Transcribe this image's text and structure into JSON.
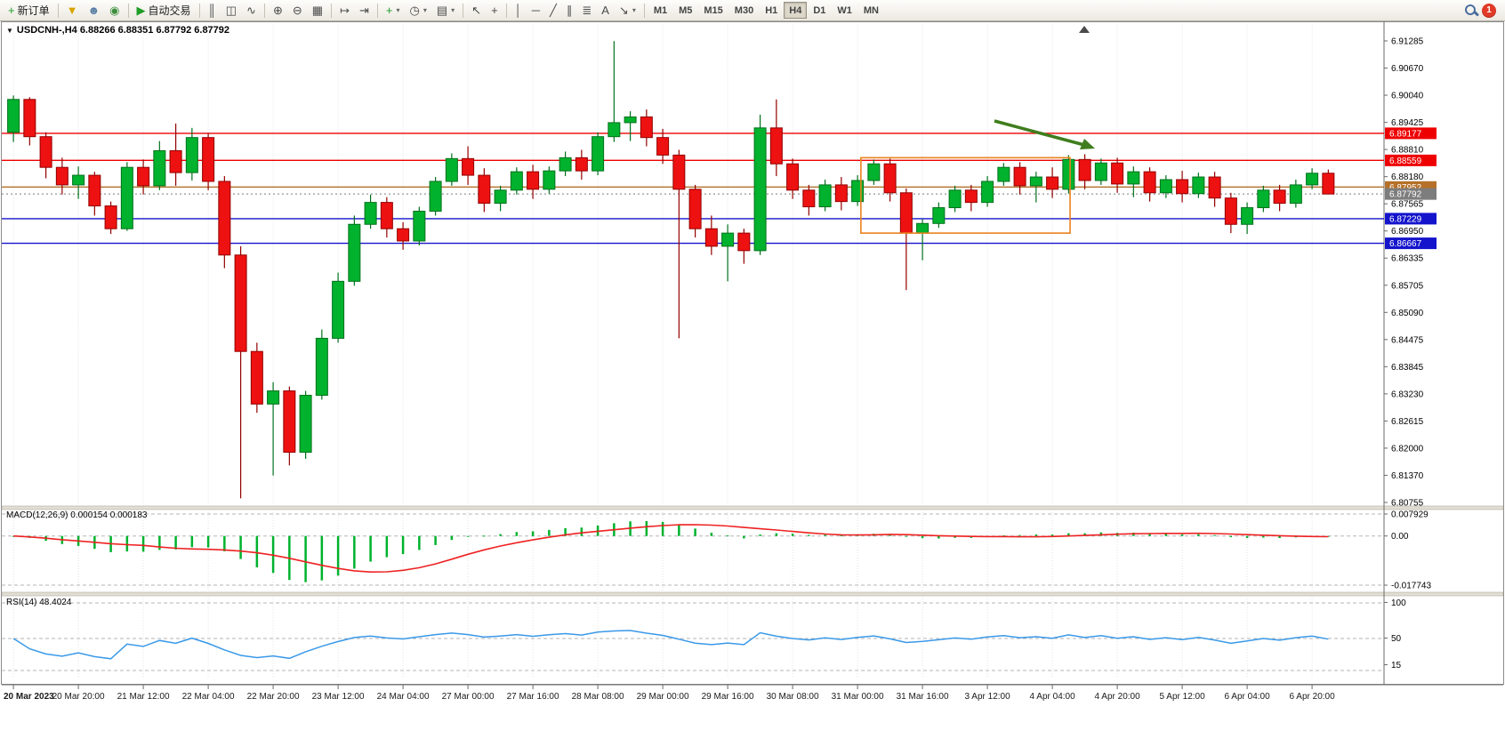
{
  "chart_header": {
    "symbol_ohlc": "USDCNH-,H4 6.88266 6.88351 6.87792 6.87792"
  },
  "indicators": {
    "macd_label": "MACD(12,26,9) 0.000154 0.000183",
    "rsi_label": "RSI(14) 48.4024"
  },
  "toolbar": {
    "groups": [
      {
        "items": [
          {
            "name": "new-order-button",
            "glyph": "+",
            "color": "#1f9d27",
            "label": "新订单"
          }
        ]
      },
      {
        "items": [
          {
            "name": "funnel-button",
            "glyph": "▼",
            "color": "#d9a400"
          },
          {
            "name": "community-profile-button",
            "glyph": "☻",
            "color": "#5b7fa6"
          },
          {
            "name": "broadcast-button",
            "glyph": "◉",
            "color": "#3e8e3e"
          }
        ]
      },
      {
        "items": [
          {
            "name": "autotrading-button",
            "glyph": "▶",
            "color": "#1f9d27",
            "label": "自动交易"
          }
        ]
      },
      {
        "items": [
          {
            "name": "bar-chart-type-button",
            "glyph": "║"
          },
          {
            "name": "candlestick-type-button",
            "glyph": "◫"
          },
          {
            "name": "line-chart-type-button",
            "glyph": "∿"
          }
        ]
      },
      {
        "items": [
          {
            "name": "zoom-in-button",
            "glyph": "⊕"
          },
          {
            "name": "zoom-out-button",
            "glyph": "⊖"
          },
          {
            "name": "tile-windows-button",
            "glyph": "▦"
          }
        ]
      },
      {
        "items": [
          {
            "name": "auto-scroll-button",
            "glyph": "↦"
          },
          {
            "name": "chart-shift-button",
            "glyph": "⇥"
          }
        ]
      },
      {
        "items": [
          {
            "name": "indicators-button",
            "glyph": "+",
            "color": "#1f9d27",
            "dropdown": true
          },
          {
            "name": "periods-button",
            "glyph": "◷",
            "dropdown": true
          },
          {
            "name": "templates-button",
            "glyph": "▤",
            "dropdown": true
          }
        ]
      },
      {
        "items": [
          {
            "name": "cursor-button",
            "glyph": "↖"
          },
          {
            "name": "crosshair-button",
            "glyph": "+"
          }
        ]
      },
      {
        "items": [
          {
            "name": "vertical-line-button",
            "glyph": "│"
          },
          {
            "name": "horizontal-line-button",
            "glyph": "─"
          },
          {
            "name": "trendline-button",
            "glyph": "╱"
          },
          {
            "name": "equidistant-channel-button",
            "glyph": "∥"
          },
          {
            "name": "fibonacci-button",
            "glyph": "≣"
          },
          {
            "name": "text-button",
            "glyph": "A"
          },
          {
            "name": "arrows-button",
            "glyph": "↘",
            "dropdown": true
          }
        ]
      }
    ],
    "timeframes": [
      "M1",
      "M5",
      "M15",
      "M30",
      "H1",
      "H4",
      "D1",
      "W1",
      "MN"
    ],
    "active_timeframe": "H4",
    "notification_count": "1"
  },
  "chart_data": {
    "type": "candlestick",
    "symbol": "USDCNH-",
    "timeframe": "H4",
    "current_ohlc": {
      "open": "6.88266",
      "high": "6.88351",
      "low": "6.87792",
      "close": "6.87792"
    },
    "up_color": "#00b22d",
    "down_color": "#ee1111",
    "up_border": "#00711c",
    "down_border": "#930000",
    "price_axis_labels": [
      "6.91285",
      "6.90670",
      "6.90040",
      "6.89425",
      "6.88810",
      "6.88180",
      "6.87565",
      "6.86950",
      "6.86335",
      "6.85705",
      "6.85090",
      "6.84475",
      "6.83845",
      "6.83230",
      "6.82615",
      "6.82000",
      "6.81370",
      "6.80755"
    ],
    "price_axis_range": {
      "max": 6.91285,
      "min": 6.80755
    },
    "time_axis_labels": [
      "20 Mar 2023",
      "20 Mar 20:00",
      "21 Mar 12:00",
      "22 Mar 04:00",
      "22 Mar 20:00",
      "23 Mar 12:00",
      "24 Mar 04:00",
      "27 Mar 00:00",
      "27 Mar 16:00",
      "28 Mar 08:00",
      "29 Mar 00:00",
      "29 Mar 16:00",
      "30 Mar 08:00",
      "31 Mar 00:00",
      "31 Mar 16:00",
      "3 Apr 12:00",
      "4 Apr 04:00",
      "4 Apr 20:00",
      "5 Apr 12:00",
      "6 Apr 04:00",
      "6 Apr 20:00"
    ],
    "horizontal_lines": [
      {
        "name": "resistance-line-1",
        "price": 6.89177,
        "label": "6.89177",
        "color": "#ee0000",
        "style": "solid"
      },
      {
        "name": "resistance-line-2",
        "price": 6.88559,
        "label": "6.88559",
        "color": "#ee0000",
        "style": "solid"
      },
      {
        "name": "pivot-line",
        "price": 6.87952,
        "label": "6.87952",
        "color": "#b5712a",
        "style": "solid"
      },
      {
        "name": "bid-price-line",
        "price": 6.87792,
        "label": "6.87792",
        "color": "#7d7d7d",
        "style": "dotted"
      },
      {
        "name": "support-line-1",
        "price": 6.87229,
        "label": "6.87229",
        "color": "#1414cc",
        "style": "solid"
      },
      {
        "name": "support-line-2",
        "price": 6.86667,
        "label": "6.86667",
        "color": "#1414cc",
        "style": "solid"
      }
    ],
    "highlight_box": {
      "price_top": 6.8862,
      "price_bottom": 6.869,
      "bar_start": 52.7,
      "bar_end": 64.6,
      "color": "#e8821e"
    },
    "trend_arrow": {
      "direction": "down-right",
      "color": "#3f7d1e"
    },
    "candles_ohlc": [
      [
        6.892,
        6.9004,
        6.8898,
        6.8995
      ],
      [
        6.8995,
        6.9,
        6.889,
        6.891
      ],
      [
        6.891,
        6.892,
        6.8815,
        6.884
      ],
      [
        6.884,
        6.8862,
        6.8778,
        6.88
      ],
      [
        6.88,
        6.8842,
        6.8768,
        6.8822
      ],
      [
        6.8822,
        6.883,
        6.873,
        6.8752
      ],
      [
        6.8752,
        6.8762,
        6.8688,
        6.87
      ],
      [
        6.87,
        6.8852,
        6.8695,
        6.884
      ],
      [
        6.884,
        6.8858,
        6.8778,
        6.8798
      ],
      [
        6.8798,
        6.89,
        6.8788,
        6.8878
      ],
      [
        6.8878,
        6.894,
        6.8798,
        6.8828
      ],
      [
        6.8828,
        6.893,
        6.881,
        6.8908
      ],
      [
        6.8908,
        6.8918,
        6.8788,
        6.8808
      ],
      [
        6.8808,
        6.882,
        6.861,
        6.864
      ],
      [
        6.864,
        6.866,
        6.8085,
        6.842
      ],
      [
        6.842,
        6.844,
        6.828,
        6.83
      ],
      [
        6.83,
        6.835,
        6.8137,
        6.833
      ],
      [
        6.833,
        6.834,
        6.816,
        6.819
      ],
      [
        6.819,
        6.833,
        6.8175,
        6.832
      ],
      [
        6.832,
        6.847,
        6.831,
        6.845
      ],
      [
        6.845,
        6.86,
        6.844,
        6.858
      ],
      [
        6.858,
        6.873,
        6.857,
        6.871
      ],
      [
        6.871,
        6.8778,
        6.87,
        6.876
      ],
      [
        6.876,
        6.8772,
        6.868,
        6.87
      ],
      [
        6.87,
        6.8715,
        6.8652,
        6.8672
      ],
      [
        6.8672,
        6.875,
        6.8662,
        6.874
      ],
      [
        6.874,
        6.8818,
        6.873,
        6.8808
      ],
      [
        6.8808,
        6.8872,
        6.8798,
        6.886
      ],
      [
        6.886,
        6.8888,
        6.88,
        6.8822
      ],
      [
        6.8822,
        6.8838,
        6.8738,
        6.8758
      ],
      [
        6.8758,
        6.8798,
        6.874,
        6.8788
      ],
      [
        6.8788,
        6.884,
        6.8778,
        6.883
      ],
      [
        6.883,
        6.8846,
        6.8768,
        6.879
      ],
      [
        6.879,
        6.8842,
        6.878,
        6.8832
      ],
      [
        6.8832,
        6.8876,
        6.882,
        6.8862
      ],
      [
        6.8862,
        6.888,
        6.8812,
        6.8832
      ],
      [
        6.8832,
        6.892,
        6.8822,
        6.891
      ],
      [
        6.891,
        6.9128,
        6.8898,
        6.8942
      ],
      [
        6.8942,
        6.8968,
        6.89,
        6.8955
      ],
      [
        6.8955,
        6.8972,
        6.8888,
        6.8908
      ],
      [
        6.8908,
        6.8928,
        6.8848,
        6.8868
      ],
      [
        6.8868,
        6.888,
        6.845,
        6.879
      ],
      [
        6.879,
        6.88,
        6.868,
        6.87
      ],
      [
        6.87,
        6.873,
        6.864,
        6.866
      ],
      [
        6.866,
        6.871,
        6.858,
        6.869
      ],
      [
        6.869,
        6.87,
        6.862,
        6.865
      ],
      [
        6.865,
        6.896,
        6.864,
        6.893
      ],
      [
        6.893,
        6.8995,
        6.882,
        6.8848
      ],
      [
        6.8848,
        6.886,
        6.8768,
        6.8788
      ],
      [
        6.8788,
        6.88,
        6.873,
        6.875
      ],
      [
        6.875,
        6.8812,
        6.874,
        6.88
      ],
      [
        6.88,
        6.8818,
        6.8742,
        6.8762
      ],
      [
        6.8762,
        6.8822,
        6.8752,
        6.881
      ],
      [
        6.881,
        6.8858,
        6.88,
        6.8848
      ],
      [
        6.8848,
        6.886,
        6.8762,
        6.8782
      ],
      [
        6.8782,
        6.8792,
        6.856,
        6.869
      ],
      [
        6.869,
        6.8722,
        6.8628,
        6.8712
      ],
      [
        6.8712,
        6.876,
        6.8702,
        6.8748
      ],
      [
        6.8748,
        6.8798,
        6.8738,
        6.8788
      ],
      [
        6.8788,
        6.88,
        6.874,
        6.876
      ],
      [
        6.876,
        6.882,
        6.875,
        6.8808
      ],
      [
        6.8808,
        6.885,
        6.8798,
        6.884
      ],
      [
        6.884,
        6.8852,
        6.8778,
        6.8798
      ],
      [
        6.8798,
        6.883,
        6.876,
        6.8818
      ],
      [
        6.8818,
        6.884,
        6.877,
        6.879
      ],
      [
        6.879,
        6.8868,
        6.878,
        6.8858
      ],
      [
        6.8858,
        6.887,
        6.879,
        6.881
      ],
      [
        6.881,
        6.886,
        6.88,
        6.885
      ],
      [
        6.885,
        6.8862,
        6.8782,
        6.8802
      ],
      [
        6.8802,
        6.8842,
        6.8772,
        6.883
      ],
      [
        6.883,
        6.884,
        6.8762,
        6.8782
      ],
      [
        6.8782,
        6.8822,
        6.877,
        6.8812
      ],
      [
        6.8812,
        6.8832,
        6.876,
        6.878
      ],
      [
        6.878,
        6.8828,
        6.877,
        6.8818
      ],
      [
        6.8818,
        6.883,
        6.875,
        6.877
      ],
      [
        6.877,
        6.8782,
        6.869,
        6.871
      ],
      [
        6.871,
        6.876,
        6.8688,
        6.8748
      ],
      [
        6.8748,
        6.8798,
        6.8738,
        6.8788
      ],
      [
        6.8788,
        6.88,
        6.874,
        6.8758
      ],
      [
        6.8758,
        6.8812,
        6.8748,
        6.88
      ],
      [
        6.88,
        6.8838,
        6.879,
        6.88266
      ],
      [
        6.88266,
        6.88351,
        6.87792,
        6.87792
      ]
    ],
    "indicator_panels": [
      {
        "name": "MACD",
        "params": "12,26,9",
        "values_label": "0.000154 0.000183",
        "scale_labels": [
          "0.007929",
          "0.00",
          "-0.017743"
        ],
        "scale_max": 0.007929,
        "scale_min": -0.017743,
        "histogram_color": "#00b22d",
        "signal_color": "#ee2222"
      },
      {
        "name": "RSI",
        "params": "14",
        "value_label": "48.4024",
        "scale_labels": [
          "100",
          "50",
          "15"
        ],
        "line_color": "#3a99e8"
      }
    ]
  }
}
